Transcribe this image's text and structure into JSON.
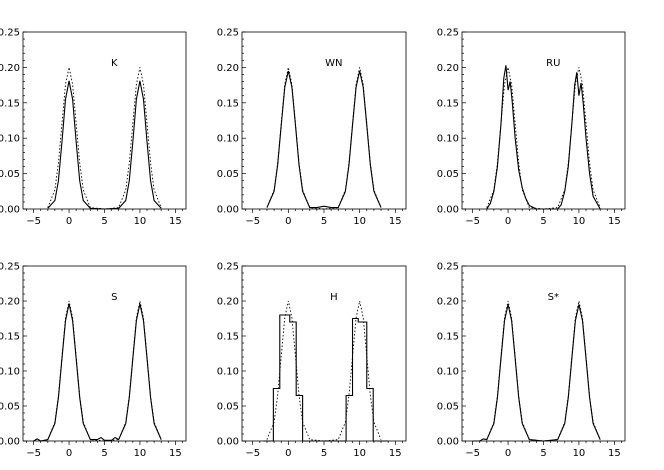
{
  "chart_data": [
    {
      "type": "line",
      "title": "K",
      "xlim": [
        -6.5,
        16.5
      ],
      "ylim": [
        0,
        0.25
      ],
      "xticks": [
        -5,
        0,
        5,
        10,
        15
      ],
      "yticks": [
        0.0,
        0.05,
        0.1,
        0.15,
        0.2,
        0.25
      ],
      "yticklabels": [
        "0.00",
        "0.05",
        "0.10",
        "0.15",
        "0.20",
        "0.25"
      ],
      "series": [
        {
          "style": "solid",
          "x": [
            -3,
            -2,
            -1.5,
            -1,
            -0.5,
            0,
            0.5,
            1,
            1.5,
            2,
            3,
            5,
            7,
            8,
            8.5,
            9,
            9.5,
            10,
            10.5,
            11,
            11.5,
            12,
            13
          ],
          "y": [
            0.001,
            0.012,
            0.04,
            0.095,
            0.155,
            0.181,
            0.155,
            0.095,
            0.04,
            0.012,
            0.001,
            0,
            0.001,
            0.012,
            0.04,
            0.095,
            0.155,
            0.181,
            0.155,
            0.095,
            0.04,
            0.012,
            0.001
          ]
        },
        {
          "style": "dotted",
          "x": [
            -3,
            -2,
            -1.5,
            -1,
            -0.5,
            0,
            0.5,
            1,
            1.5,
            2,
            3,
            5,
            7,
            8,
            8.5,
            9,
            9.5,
            10,
            10.5,
            11,
            11.5,
            12,
            13
          ],
          "y": [
            0.002,
            0.027,
            0.065,
            0.121,
            0.176,
            0.2,
            0.176,
            0.121,
            0.065,
            0.027,
            0.002,
            0,
            0.002,
            0.027,
            0.065,
            0.121,
            0.176,
            0.2,
            0.176,
            0.121,
            0.065,
            0.027,
            0.002
          ]
        }
      ]
    },
    {
      "type": "line",
      "title": "WN",
      "xlim": [
        -6.5,
        16.5
      ],
      "ylim": [
        0,
        0.25
      ],
      "xticks": [
        -5,
        0,
        5,
        10,
        15
      ],
      "yticks": [
        0.0,
        0.05,
        0.1,
        0.15,
        0.2,
        0.25
      ],
      "yticklabels": [
        "0.00",
        "0.05",
        "0.10",
        "0.15",
        "0.20",
        "0.25"
      ],
      "series": [
        {
          "style": "solid",
          "x": [
            -3,
            -2,
            -1.5,
            -1,
            -0.5,
            0,
            0.5,
            1,
            1.5,
            2,
            3,
            4,
            5,
            6,
            7,
            8,
            8.5,
            9,
            9.5,
            10,
            10.5,
            11,
            11.5,
            12,
            13
          ],
          "y": [
            0.002,
            0.025,
            0.062,
            0.118,
            0.172,
            0.195,
            0.172,
            0.118,
            0.062,
            0.025,
            0.002,
            0.002,
            0.004,
            0.002,
            0.002,
            0.025,
            0.062,
            0.118,
            0.172,
            0.195,
            0.172,
            0.118,
            0.062,
            0.025,
            0.002
          ]
        },
        {
          "style": "dotted",
          "x": [
            -3,
            -2,
            -1.5,
            -1,
            -0.5,
            0,
            0.5,
            1,
            1.5,
            2,
            3,
            5,
            7,
            8,
            8.5,
            9,
            9.5,
            10,
            10.5,
            11,
            11.5,
            12,
            13
          ],
          "y": [
            0.002,
            0.027,
            0.065,
            0.121,
            0.176,
            0.2,
            0.176,
            0.121,
            0.065,
            0.027,
            0.002,
            0,
            0.002,
            0.027,
            0.065,
            0.121,
            0.176,
            0.2,
            0.176,
            0.121,
            0.065,
            0.027,
            0.002
          ]
        }
      ]
    },
    {
      "type": "line",
      "title": "RU",
      "xlim": [
        -6.5,
        16.5
      ],
      "ylim": [
        0,
        0.25
      ],
      "xticks": [
        -5,
        0,
        5,
        10,
        15
      ],
      "yticks": [
        0.0,
        0.05,
        0.1,
        0.15,
        0.2,
        0.25
      ],
      "yticklabels": [
        "0.00",
        "0.05",
        "0.10",
        "0.15",
        "0.20",
        "0.25"
      ],
      "series": [
        {
          "style": "solid",
          "x": [
            -3,
            -2.5,
            -2,
            -1.5,
            -1,
            -0.6,
            -0.3,
            0,
            0.3,
            0.6,
            1,
            1.5,
            2,
            2.5,
            3,
            4,
            7,
            7.5,
            8,
            8.5,
            9,
            9.4,
            9.7,
            10,
            10.3,
            10.6,
            11,
            11.5,
            12,
            13
          ],
          "y": [
            0,
            0.008,
            0.025,
            0.06,
            0.12,
            0.185,
            0.203,
            0.168,
            0.18,
            0.15,
            0.1,
            0.055,
            0.03,
            0.015,
            0.005,
            0,
            0,
            0.006,
            0.025,
            0.06,
            0.12,
            0.175,
            0.193,
            0.16,
            0.178,
            0.15,
            0.1,
            0.05,
            0.018,
            0
          ]
        },
        {
          "style": "dotted",
          "x": [
            -3,
            -2,
            -1.5,
            -1,
            -0.5,
            0,
            0.5,
            1,
            1.5,
            2,
            3,
            5,
            7,
            8,
            8.5,
            9,
            9.5,
            10,
            10.5,
            11,
            11.5,
            12,
            13
          ],
          "y": [
            0.002,
            0.027,
            0.065,
            0.121,
            0.176,
            0.2,
            0.176,
            0.121,
            0.065,
            0.027,
            0.002,
            0,
            0.002,
            0.027,
            0.065,
            0.121,
            0.176,
            0.2,
            0.176,
            0.121,
            0.065,
            0.027,
            0.002
          ]
        }
      ]
    },
    {
      "type": "line",
      "title": "S",
      "xlim": [
        -6.5,
        16.5
      ],
      "ylim": [
        0,
        0.25
      ],
      "xticks": [
        -5,
        0,
        5,
        10,
        15
      ],
      "yticks": [
        0.0,
        0.05,
        0.1,
        0.15,
        0.2,
        0.25
      ],
      "yticklabels": [
        "0.00",
        "0.05",
        "0.10",
        "0.15",
        "0.20",
        "0.25"
      ],
      "series": [
        {
          "style": "solid",
          "x": [
            -5,
            -4.5,
            -4,
            -3,
            -2,
            -1.5,
            -1,
            -0.5,
            0,
            0.5,
            1,
            1.5,
            2,
            3,
            4,
            4.5,
            5,
            6,
            6.5,
            7,
            8,
            8.5,
            9,
            9.5,
            10,
            10.5,
            11,
            11.5,
            12,
            13
          ],
          "y": [
            0,
            0.003,
            0,
            0.002,
            0.025,
            0.062,
            0.118,
            0.172,
            0.196,
            0.172,
            0.118,
            0.062,
            0.025,
            0.002,
            0.002,
            0.005,
            0.001,
            0.001,
            0.005,
            0.002,
            0.025,
            0.062,
            0.118,
            0.172,
            0.196,
            0.172,
            0.118,
            0.062,
            0.025,
            0.002
          ]
        },
        {
          "style": "dotted",
          "x": [
            -3,
            -2,
            -1.5,
            -1,
            -0.5,
            0,
            0.5,
            1,
            1.5,
            2,
            3,
            5,
            7,
            8,
            8.5,
            9,
            9.5,
            10,
            10.5,
            11,
            11.5,
            12,
            13
          ],
          "y": [
            0.002,
            0.027,
            0.065,
            0.121,
            0.176,
            0.2,
            0.176,
            0.121,
            0.065,
            0.027,
            0.002,
            0,
            0.002,
            0.027,
            0.065,
            0.121,
            0.176,
            0.2,
            0.176,
            0.121,
            0.065,
            0.027,
            0.002
          ]
        }
      ]
    },
    {
      "type": "line",
      "title": "H",
      "xlim": [
        -6.5,
        16.5
      ],
      "ylim": [
        0,
        0.25
      ],
      "xticks": [
        -5,
        0,
        5,
        10,
        15
      ],
      "yticks": [
        0.0,
        0.05,
        0.1,
        0.15,
        0.2,
        0.25
      ],
      "yticklabels": [
        "0.00",
        "0.05",
        "0.10",
        "0.15",
        "0.20",
        "0.25"
      ],
      "series": [
        {
          "style": "solid",
          "step": true,
          "x": [
            -3.5,
            -2.1,
            -2.1,
            -1.2,
            -1.2,
            0.2,
            0.2,
            1.1,
            1.1,
            2.0,
            2.0,
            8.1,
            8.1,
            9.0,
            9.0,
            9.8,
            9.8,
            11.0,
            11.0,
            11.9,
            11.9,
            14.0
          ],
          "y": [
            0,
            0,
            0.075,
            0.075,
            0.18,
            0.18,
            0.17,
            0.17,
            0.065,
            0.065,
            0,
            0,
            0.065,
            0.065,
            0.175,
            0.175,
            0.17,
            0.17,
            0.075,
            0.075,
            0,
            0
          ]
        },
        {
          "style": "dotted",
          "x": [
            -3,
            -2,
            -1.5,
            -1,
            -0.5,
            0,
            0.5,
            1,
            1.5,
            2,
            3,
            5,
            7,
            8,
            8.5,
            9,
            9.5,
            10,
            10.5,
            11,
            11.5,
            12,
            13
          ],
          "y": [
            0.002,
            0.027,
            0.065,
            0.121,
            0.176,
            0.2,
            0.176,
            0.121,
            0.065,
            0.027,
            0.002,
            0,
            0.002,
            0.027,
            0.065,
            0.121,
            0.176,
            0.2,
            0.176,
            0.121,
            0.065,
            0.027,
            0.002
          ]
        }
      ]
    },
    {
      "type": "line",
      "title": "S*",
      "xlim": [
        -6.5,
        16.5
      ],
      "ylim": [
        0,
        0.25
      ],
      "xticks": [
        -5,
        0,
        5,
        10,
        15
      ],
      "yticks": [
        0.0,
        0.05,
        0.1,
        0.15,
        0.2,
        0.25
      ],
      "yticklabels": [
        "0.00",
        "0.05",
        "0.10",
        "0.15",
        "0.20",
        "0.25"
      ],
      "series": [
        {
          "style": "solid",
          "x": [
            -5,
            -4,
            -3.5,
            -3,
            -2,
            -1.5,
            -1,
            -0.5,
            0,
            0.5,
            1,
            1.5,
            2,
            3,
            5,
            7,
            8,
            8.5,
            9,
            9.5,
            10,
            10.5,
            11,
            11.5,
            12,
            13
          ],
          "y": [
            0,
            0,
            0.003,
            0.002,
            0.025,
            0.062,
            0.118,
            0.172,
            0.195,
            0.172,
            0.118,
            0.062,
            0.025,
            0.002,
            0,
            0.002,
            0.025,
            0.062,
            0.118,
            0.172,
            0.195,
            0.172,
            0.118,
            0.062,
            0.025,
            0.002
          ]
        },
        {
          "style": "dotted",
          "x": [
            -3,
            -2,
            -1.5,
            -1,
            -0.5,
            0,
            0.5,
            1,
            1.5,
            2,
            3,
            5,
            7,
            8,
            8.5,
            9,
            9.5,
            10,
            10.5,
            11,
            11.5,
            12,
            13
          ],
          "y": [
            0.002,
            0.027,
            0.065,
            0.121,
            0.176,
            0.2,
            0.176,
            0.121,
            0.065,
            0.027,
            0.002,
            0,
            0.002,
            0.027,
            0.065,
            0.121,
            0.176,
            0.2,
            0.176,
            0.121,
            0.065,
            0.027,
            0.002
          ]
        }
      ]
    }
  ]
}
